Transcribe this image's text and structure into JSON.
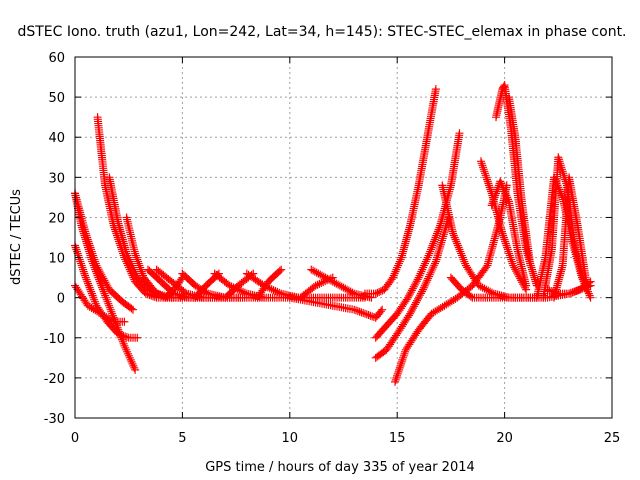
{
  "chart_data": {
    "type": "scatter",
    "title": "dSTEC Iono. truth (azu1, Lon=242, Lat=34, h=145): STEC-STEC_elemax in phase cont.",
    "xlabel": "GPS time / hours of day 335 of year 2014",
    "ylabel": "dSTEC  / TECUs",
    "xlim": [
      0,
      25
    ],
    "ylim": [
      -30,
      60
    ],
    "x_ticks": [
      0,
      5,
      10,
      15,
      20,
      25
    ],
    "y_ticks": [
      -30,
      -20,
      -10,
      0,
      10,
      20,
      30,
      40,
      50,
      60
    ],
    "grid": true,
    "marker": "+",
    "color": "#ff0000",
    "series": [
      {
        "x": [
          0.0,
          0.3,
          0.8,
          1.3,
          1.8,
          2.3,
          2.8
        ],
        "y": [
          26,
          18,
          9,
          2,
          -5,
          -12,
          -18
        ]
      },
      {
        "x": [
          0.0,
          0.5,
          1.0,
          1.5,
          2.0,
          2.5,
          2.9
        ],
        "y": [
          13,
          5,
          -2,
          -6,
          -9,
          -10,
          -10
        ]
      },
      {
        "x": [
          0.0,
          0.6,
          1.2,
          1.8,
          2.3
        ],
        "y": [
          3,
          -2,
          -4,
          -6,
          -6
        ]
      },
      {
        "x": [
          0.0,
          0.5,
          1.0,
          1.6,
          2.2,
          2.7
        ],
        "y": [
          26,
          16,
          8,
          2,
          -1,
          -3
        ]
      },
      {
        "x": [
          1.05,
          1.4,
          1.8,
          2.3,
          2.8,
          3.3,
          3.8,
          4.5
        ],
        "y": [
          45,
          28,
          18,
          10,
          4,
          1,
          0,
          0
        ]
      },
      {
        "x": [
          1.6,
          2.0,
          2.4,
          2.9,
          3.5,
          4.2,
          5.0
        ],
        "y": [
          30,
          19,
          11,
          5,
          2,
          0,
          0
        ]
      },
      {
        "x": [
          2.4,
          2.8,
          3.2,
          3.8,
          4.5,
          5.5,
          6.5,
          7.5,
          8.5,
          9.5,
          10.5,
          11.5,
          12.5,
          13.5
        ],
        "y": [
          20,
          11,
          5,
          1,
          0,
          0,
          0,
          0,
          0,
          0,
          0,
          0,
          0,
          0
        ]
      },
      {
        "x": [
          3.4,
          4.0,
          4.6,
          5.3,
          6.0
        ],
        "y": [
          7,
          4,
          1,
          0,
          0
        ]
      },
      {
        "x": [
          3.8,
          4.5,
          5.2,
          6.0,
          6.8
        ],
        "y": [
          7,
          4,
          1,
          0,
          0
        ]
      },
      {
        "x": [
          4.2,
          4.6,
          5.0
        ],
        "y": [
          0,
          2,
          5
        ]
      },
      {
        "x": [
          5.0,
          5.6,
          6.2,
          7.0,
          7.8
        ],
        "y": [
          6,
          3,
          1,
          0,
          0
        ]
      },
      {
        "x": [
          5.6,
          6.1,
          6.7
        ],
        "y": [
          0,
          3,
          6
        ]
      },
      {
        "x": [
          6.5,
          7.2,
          8.0,
          8.8
        ],
        "y": [
          6,
          3,
          1,
          0
        ]
      },
      {
        "x": [
          7.0,
          7.6,
          8.3
        ],
        "y": [
          0,
          3,
          6
        ]
      },
      {
        "x": [
          8.0,
          8.8,
          9.6,
          10.4
        ],
        "y": [
          6,
          3,
          1,
          0
        ]
      },
      {
        "x": [
          8.5,
          9.0,
          9.6
        ],
        "y": [
          0,
          4,
          7
        ]
      },
      {
        "x": [
          11.0,
          12.0,
          13.0,
          13.8
        ],
        "y": [
          7,
          4,
          1,
          0
        ]
      },
      {
        "x": [
          10.5,
          11.2,
          12.0
        ],
        "y": [
          0,
          3,
          5
        ]
      },
      {
        "x": [
          10.0,
          11.0,
          12.0,
          13.0,
          13.5,
          14.0,
          14.3
        ],
        "y": [
          0,
          -1,
          -2,
          -3,
          -4,
          -5,
          -3
        ]
      },
      {
        "x": [
          13.5,
          14.0,
          14.4,
          14.8,
          15.2,
          15.6,
          16.0,
          16.4,
          16.8
        ],
        "y": [
          1,
          1,
          2,
          5,
          10,
          18,
          28,
          40,
          52
        ]
      },
      {
        "x": [
          14.0,
          14.5,
          15.0,
          15.5,
          16.0,
          16.5,
          17.0,
          17.5,
          17.9
        ],
        "y": [
          -10,
          -7,
          -4,
          0,
          5,
          11,
          18,
          28,
          41
        ]
      },
      {
        "x": [
          14.0,
          14.5,
          15.0,
          15.6,
          16.2,
          16.8,
          17.4
        ],
        "y": [
          -15,
          -13,
          -9,
          -4,
          2,
          9,
          20
        ]
      },
      {
        "x": [
          14.9,
          15.4,
          16.0,
          16.6,
          17.2,
          17.8,
          18.5,
          19.2,
          19.8,
          20.1
        ],
        "y": [
          -21,
          -13,
          -8,
          -4,
          -2,
          0,
          3,
          8,
          20,
          28
        ]
      },
      {
        "x": [
          17.1,
          17.6,
          18.2,
          18.8,
          19.5,
          20.2,
          21.0,
          21.5
        ],
        "y": [
          28,
          16,
          8,
          3,
          1,
          0,
          0,
          0
        ]
      },
      {
        "x": [
          17.5,
          18.0,
          18.5,
          19.0,
          19.5,
          20.0,
          21.0,
          22.0,
          23.0,
          24.0
        ],
        "y": [
          5,
          2,
          0,
          0,
          0,
          0,
          0,
          0,
          1,
          3
        ]
      },
      {
        "x": [
          18.9,
          19.4,
          19.9,
          20.4,
          21.0
        ],
        "y": [
          34,
          26,
          16,
          8,
          2
        ]
      },
      {
        "x": [
          19.4,
          19.8,
          20.2,
          20.6,
          21.0
        ],
        "y": [
          23,
          29,
          24,
          12,
          3
        ]
      },
      {
        "x": [
          19.6,
          19.9,
          20.0,
          20.3,
          20.6,
          21.0,
          21.5
        ],
        "y": [
          45,
          52,
          53,
          42,
          26,
          12,
          3
        ]
      },
      {
        "x": [
          20.2,
          20.5,
          20.8,
          21.2
        ],
        "y": [
          50,
          40,
          24,
          8
        ]
      },
      {
        "x": [
          21.5,
          21.9,
          22.3,
          22.7,
          23.1,
          23.6,
          24.0
        ],
        "y": [
          0,
          10,
          30,
          25,
          15,
          5,
          0
        ]
      },
      {
        "x": [
          21.8,
          22.2,
          22.5,
          22.9,
          23.3,
          23.8
        ],
        "y": [
          0,
          12,
          35,
          28,
          12,
          2
        ]
      },
      {
        "x": [
          22.3,
          22.7,
          23.0,
          23.4,
          23.8
        ],
        "y": [
          0,
          8,
          30,
          18,
          4
        ]
      },
      {
        "x": [
          22.0,
          22.5,
          23.0,
          23.5,
          24.0
        ],
        "y": [
          2,
          1,
          1,
          2,
          4
        ]
      }
    ]
  }
}
